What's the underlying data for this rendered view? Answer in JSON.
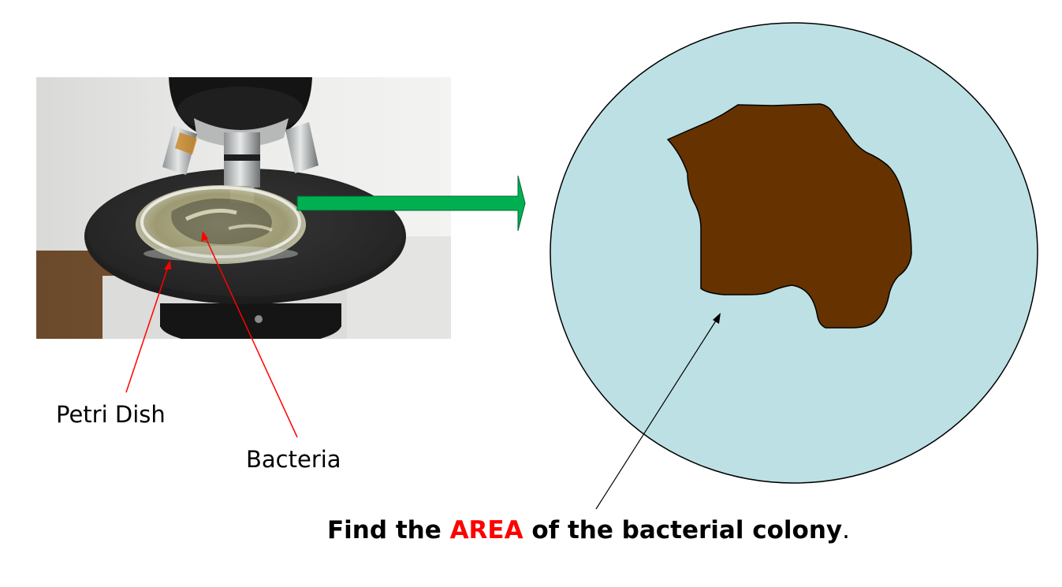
{
  "labels": {
    "petri_dish": "Petri Dish",
    "bacteria": "Bacteria"
  },
  "caption": {
    "prefix": "Find the ",
    "highlight": "AREA",
    "suffix": " of the bacterial colony",
    "period": "."
  },
  "colors": {
    "dish_fill": "#bde0e4",
    "colony_fill": "#663300",
    "arrow_fill": "#00b050",
    "arrow_edge": "#006633",
    "pointer_red": "#ff0000",
    "pointer_black": "#000000",
    "caption_highlight": "#ff0000"
  },
  "photo": {
    "subject": "microscope-with-petri-dish"
  }
}
